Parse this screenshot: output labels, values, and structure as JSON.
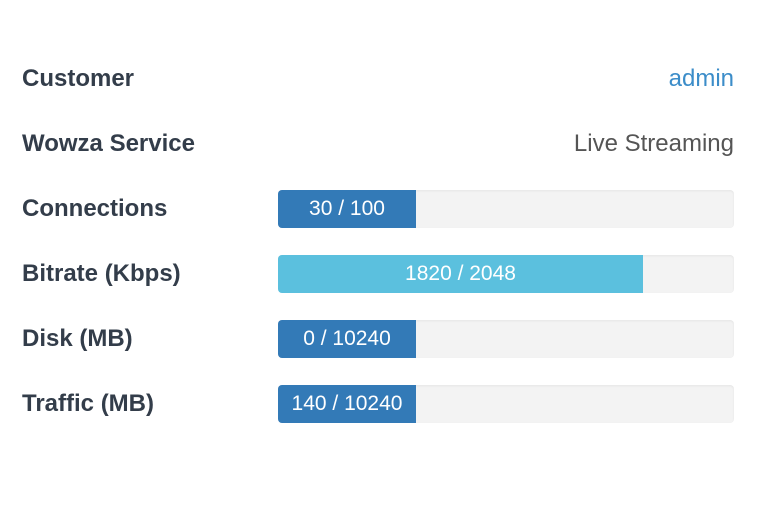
{
  "rows": [
    {
      "label": "Customer",
      "value": "admin"
    },
    {
      "label": "Wowza Service",
      "value": "Live Streaming"
    },
    {
      "label": "Connections",
      "value": "30 / 100"
    },
    {
      "label": "Bitrate (Kbps)",
      "value": "1820 / 2048"
    },
    {
      "label": "Disk (MB)",
      "value": "0 / 10240"
    },
    {
      "label": "Traffic (MB)",
      "value": "140 / 10240"
    }
  ]
}
